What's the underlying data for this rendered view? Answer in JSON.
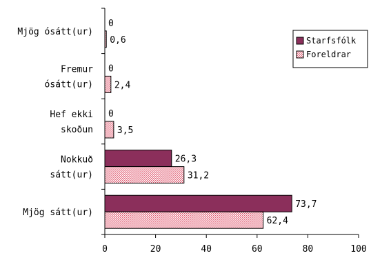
{
  "chart_data": {
    "type": "bar",
    "orientation": "horizontal",
    "categories": [
      [
        "Mjög ósátt(ur)"
      ],
      [
        "Fremur",
        "ósátt(ur)"
      ],
      [
        "Hef ekki",
        "skoðun"
      ],
      [
        "Nokkuð",
        "sátt(ur)"
      ],
      [
        "Mjög sátt(ur)"
      ]
    ],
    "series": [
      {
        "name": "Starfsfólk",
        "values": [
          0,
          0,
          0,
          26.3,
          73.7
        ],
        "labels": [
          "0",
          "0",
          "0",
          "26,3",
          "73,7"
        ],
        "color": "#8b2f5b"
      },
      {
        "name": "Foreldrar",
        "values": [
          0.6,
          2.4,
          3.5,
          31.2,
          62.4
        ],
        "labels": [
          "0,6",
          "2,4",
          "3,5",
          "31,2",
          "62,4"
        ],
        "color": "#f6b8c4"
      }
    ],
    "xlim": [
      0,
      100
    ],
    "xticks": [
      0,
      20,
      40,
      60,
      80,
      100
    ],
    "title": "",
    "xlabel": "",
    "ylabel": "",
    "legend": "top-right",
    "grid": false
  }
}
